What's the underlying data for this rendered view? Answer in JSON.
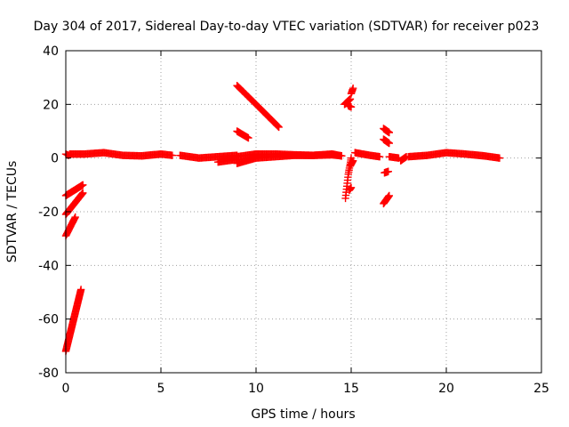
{
  "chart_data": {
    "type": "scatter",
    "title": "Day 304 of 2017, Sidereal Day-to-day VTEC variation (SDTVAR) for receiver p023",
    "xlabel": "GPS time / hours",
    "ylabel": "SDTVAR / TECUs",
    "xlim": [
      0,
      25
    ],
    "ylim": [
      -80,
      40
    ],
    "xticks": [
      0,
      5,
      10,
      15,
      20,
      25
    ],
    "yticks": [
      -80,
      -60,
      -40,
      -20,
      0,
      20,
      40
    ],
    "grid": true,
    "marker": "+",
    "color": "#ff0000",
    "segments": [
      {
        "name": "baseline-a",
        "x": [
          0.2,
          1.0,
          2.0,
          3.0,
          4.0,
          5.0,
          5.6
        ],
        "y": [
          1.5,
          1.5,
          2.0,
          1.0,
          0.8,
          1.5,
          1.0
        ],
        "step": 0.06
      },
      {
        "name": "baseline-b",
        "x": [
          6.0,
          7.0,
          8.0,
          9.0
        ],
        "y": [
          1.0,
          0.0,
          0.5,
          1.0
        ],
        "step": 0.06
      },
      {
        "name": "baseline-c",
        "x": [
          8.0,
          9.0
        ],
        "y": [
          -1.5,
          -0.5
        ],
        "step": 0.06
      },
      {
        "name": "baseline-d",
        "x": [
          9.0,
          9.5,
          10.0,
          11.0,
          12.0,
          13.0,
          14.0,
          14.5
        ],
        "y": [
          -2.0,
          -1.0,
          0.0,
          0.5,
          1.0,
          1.0,
          1.2,
          0.8
        ],
        "step": 0.06
      },
      {
        "name": "baseline-e",
        "x": [
          9.0,
          10.0,
          11.0,
          12.0,
          13.0,
          14.0,
          14.5
        ],
        "y": [
          0.5,
          1.5,
          1.5,
          1.2,
          1.0,
          1.5,
          0.8
        ],
        "step": 0.06
      },
      {
        "name": "baseline-f",
        "x": [
          15.2,
          16.0,
          16.5
        ],
        "y": [
          2.0,
          1.0,
          0.5
        ],
        "step": 0.06
      },
      {
        "name": "baseline-g",
        "x": [
          17.0,
          17.5
        ],
        "y": [
          0.5,
          0.0
        ],
        "step": 0.06
      },
      {
        "name": "baseline-h",
        "x": [
          18.0,
          19.0,
          20.0,
          21.0,
          22.0,
          22.8
        ],
        "y": [
          0.5,
          1.0,
          2.0,
          1.5,
          0.8,
          0.0
        ],
        "step": 0.06
      },
      {
        "name": "spur-start",
        "x": [
          0.0,
          0.15
        ],
        "y": [
          1.5,
          1.0
        ],
        "step": 0.05
      },
      {
        "name": "lead-a",
        "x": [
          0.0,
          0.8
        ],
        "y": [
          -72.0,
          -49.0
        ],
        "step": 0.014
      },
      {
        "name": "lead-b",
        "x": [
          0.0,
          0.5
        ],
        "y": [
          -29.0,
          -22.0
        ],
        "step": 0.03
      },
      {
        "name": "lead-c",
        "x": [
          0.0,
          0.9
        ],
        "y": [
          -21.0,
          -13.0
        ],
        "step": 0.03
      },
      {
        "name": "lead-d",
        "x": [
          0.0,
          0.9
        ],
        "y": [
          -14.0,
          -10.0
        ],
        "step": 0.03
      },
      {
        "name": "diag-high",
        "x": [
          9.0,
          10.0,
          11.2
        ],
        "y": [
          27.0,
          20.0,
          11.5
        ],
        "step": 0.04
      },
      {
        "name": "diag-low",
        "x": [
          9.0,
          9.6
        ],
        "y": [
          10.0,
          7.5
        ],
        "step": 0.04
      },
      {
        "name": "spike-15a",
        "x": [
          14.65,
          14.95
        ],
        "y": [
          20.0,
          22.0
        ],
        "step": 0.02
      },
      {
        "name": "spike-15b",
        "x": [
          14.85,
          15.0
        ],
        "y": [
          19.5,
          19.0
        ],
        "step": 0.03
      },
      {
        "name": "spike-15c",
        "x": [
          15.0,
          15.1
        ],
        "y": [
          24.0,
          26.0
        ],
        "step": 0.03
      },
      {
        "name": "dip-15",
        "x": [
          14.7,
          14.85,
          15.0
        ],
        "y": [
          -15.0,
          -6.0,
          0.0
        ],
        "step": 0.02
      },
      {
        "name": "dip-15b",
        "x": [
          14.9,
          15.0
        ],
        "y": [
          -12.0,
          -11.0
        ],
        "step": 0.03
      },
      {
        "name": "dip-15c",
        "x": [
          14.95,
          15.1
        ],
        "y": [
          -3.0,
          -1.0
        ],
        "step": 0.03
      },
      {
        "name": "pair-17a",
        "x": [
          16.7,
          17.0
        ],
        "y": [
          11.0,
          9.5
        ],
        "step": 0.03
      },
      {
        "name": "pair-17b",
        "x": [
          16.7,
          17.0
        ],
        "y": [
          7.0,
          5.5
        ],
        "step": 0.03
      },
      {
        "name": "pair-17c",
        "x": [
          16.75,
          16.95
        ],
        "y": [
          -5.5,
          -5.0
        ],
        "step": 0.03
      },
      {
        "name": "pair-17d",
        "x": [
          16.7,
          17.0
        ],
        "y": [
          -17.0,
          -14.0
        ],
        "step": 0.03
      },
      {
        "name": "gap-18",
        "x": [
          17.6,
          17.9
        ],
        "y": [
          -1.0,
          0.5
        ],
        "step": 0.04
      }
    ]
  }
}
